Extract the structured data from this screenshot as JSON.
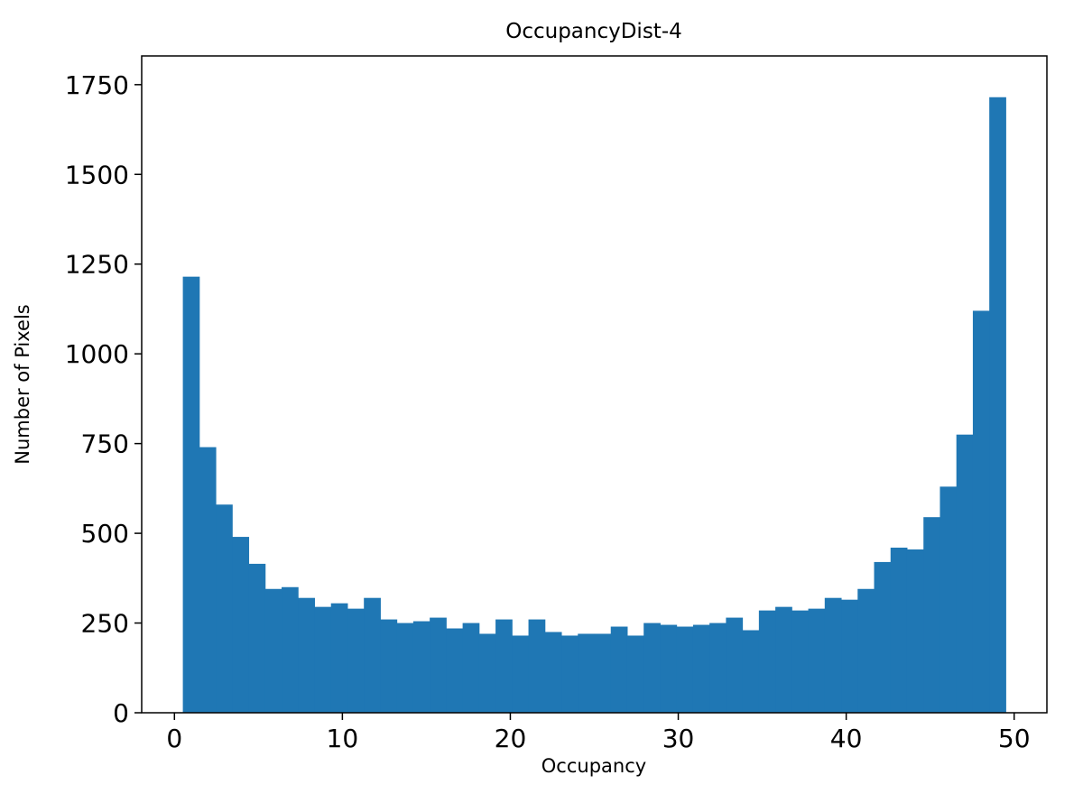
{
  "chart_data": {
    "type": "bar",
    "subtype": "histogram",
    "title": "OccupancyDist-4",
    "xlabel": "Occupancy",
    "ylabel": "Number of Pixels",
    "bar_color": "#1f77b4",
    "grid": false,
    "legend": null,
    "bin_start": 0.5,
    "bin_width": 0.98,
    "values": [
      1215,
      740,
      580,
      490,
      415,
      345,
      350,
      320,
      295,
      305,
      290,
      320,
      260,
      250,
      255,
      265,
      235,
      250,
      220,
      260,
      215,
      260,
      225,
      215,
      220,
      220,
      240,
      215,
      250,
      245,
      240,
      245,
      250,
      265,
      230,
      285,
      295,
      285,
      290,
      320,
      315,
      345,
      420,
      460,
      455,
      545,
      630,
      775,
      1120,
      1715
    ],
    "xlim": [
      -1.95,
      51.95
    ],
    "ylim": [
      0,
      1830
    ],
    "xticks": [
      0,
      10,
      20,
      30,
      40,
      50
    ],
    "yticks": [
      0,
      250,
      500,
      750,
      1000,
      1250,
      1500,
      1750
    ]
  }
}
